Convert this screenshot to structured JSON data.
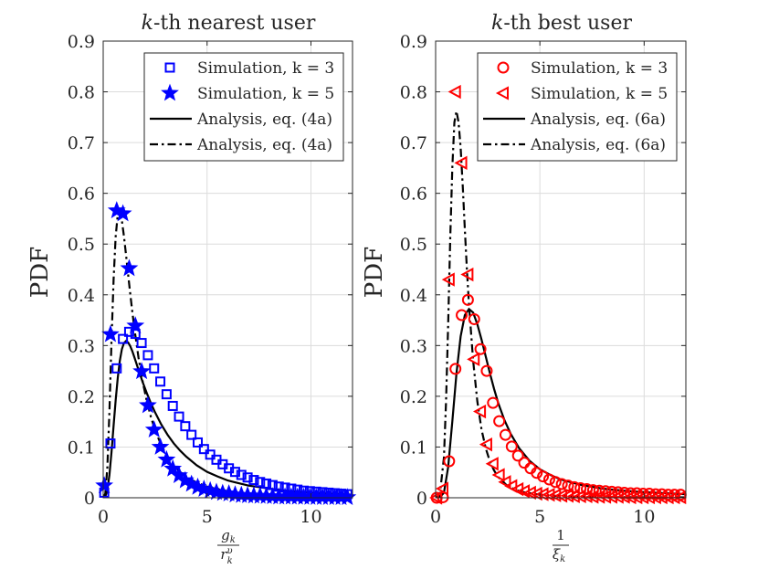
{
  "chart_data": [
    {
      "type": "line",
      "title": "k-th nearest user",
      "title_italic": "k",
      "title_rest": "-th nearest user",
      "ylabel": "PDF",
      "xlabel_num": "g",
      "xlabel_num_sub": "k",
      "xlabel_den": "r",
      "xlabel_den_sup": "υ",
      "xlabel_den_sub": "k",
      "xlim": [
        0,
        12
      ],
      "ylim": [
        0,
        0.9
      ],
      "xticks": [
        0,
        5,
        10
      ],
      "xtick_labels": [
        "0",
        "5",
        "10"
      ],
      "yticks": [
        0,
        0.1,
        0.2,
        0.3,
        0.4,
        0.5,
        0.6,
        0.7,
        0.8,
        0.9
      ],
      "ytick_labels": [
        "0",
        "0.1",
        "0.2",
        "0.3",
        "0.4",
        "0.5",
        "0.6",
        "0.7",
        "0.8",
        "0.9"
      ],
      "grid": true,
      "legend_position": "top-right",
      "color": "#0000ff",
      "series": [
        {
          "name": "Simulation, k = 3",
          "style": "marker",
          "marker": "square",
          "color": "#0000ff",
          "x": [
            0.05,
            0.35,
            0.65,
            0.95,
            1.25,
            1.55,
            1.85,
            2.15,
            2.45,
            2.75,
            3.05,
            3.35,
            3.65,
            3.95,
            4.25,
            4.55,
            4.85,
            5.15,
            5.45,
            5.75,
            6.05,
            6.35,
            6.65,
            6.95,
            7.25,
            7.55,
            7.85,
            8.15,
            8.45,
            8.75,
            9.05,
            9.35,
            9.65,
            9.95,
            10.25,
            10.55,
            10.85,
            11.15,
            11.45,
            11.75
          ],
          "y": [
            0.01,
            0.107,
            0.255,
            0.313,
            0.327,
            0.323,
            0.305,
            0.281,
            0.255,
            0.229,
            0.204,
            0.181,
            0.16,
            0.141,
            0.124,
            0.109,
            0.096,
            0.085,
            0.075,
            0.066,
            0.058,
            0.051,
            0.045,
            0.04,
            0.035,
            0.031,
            0.028,
            0.025,
            0.022,
            0.02,
            0.018,
            0.016,
            0.014,
            0.013,
            0.012,
            0.011,
            0.01,
            0.009,
            0.008,
            0.007
          ]
        },
        {
          "name": "Simulation, k = 5",
          "style": "marker",
          "marker": "star",
          "color": "#0000ff",
          "x": [
            0.05,
            0.35,
            0.65,
            0.95,
            1.25,
            1.55,
            1.85,
            2.15,
            2.45,
            2.75,
            3.05,
            3.35,
            3.65,
            3.95,
            4.25,
            4.55,
            4.85,
            5.15,
            5.45,
            5.75,
            6.05,
            6.35,
            6.65,
            6.95,
            7.25,
            7.55,
            7.85,
            8.15,
            8.45,
            8.75,
            9.05,
            9.35,
            9.65,
            9.95,
            10.25,
            10.55,
            10.85,
            11.15,
            11.45,
            11.75
          ],
          "y": [
            0.024,
            0.322,
            0.566,
            0.56,
            0.452,
            0.339,
            0.249,
            0.182,
            0.134,
            0.1,
            0.075,
            0.057,
            0.044,
            0.034,
            0.027,
            0.021,
            0.017,
            0.014,
            0.011,
            0.009,
            0.008,
            0.006,
            0.005,
            0.0045,
            0.004,
            0.0035,
            0.003,
            0.0025,
            0.002,
            0.002,
            0.0018,
            0.0016,
            0.0014,
            0.0012,
            0.001,
            0.001,
            0.001,
            0.0009,
            0.0008,
            0.0007
          ]
        },
        {
          "name": "Analysis, eq. (4a)",
          "style": "solid",
          "color": "#000000",
          "x": [
            0,
            0.1,
            0.2,
            0.3,
            0.4,
            0.5,
            0.6,
            0.7,
            0.8,
            0.9,
            1.0,
            1.1,
            1.2,
            1.3,
            1.4,
            1.5,
            1.7,
            1.9,
            2.1,
            2.3,
            2.5,
            2.8,
            3.1,
            3.4,
            3.7,
            4.0,
            4.5,
            5.0,
            5.5,
            6.0,
            6.5,
            7.0,
            7.5,
            8.0,
            9.0,
            10.0,
            11.0,
            12.0
          ],
          "y": [
            0,
            0.002,
            0.015,
            0.045,
            0.09,
            0.142,
            0.192,
            0.236,
            0.27,
            0.293,
            0.305,
            0.309,
            0.306,
            0.299,
            0.289,
            0.277,
            0.252,
            0.228,
            0.206,
            0.186,
            0.168,
            0.144,
            0.124,
            0.107,
            0.093,
            0.081,
            0.064,
            0.051,
            0.042,
            0.034,
            0.029,
            0.024,
            0.021,
            0.018,
            0.013,
            0.01,
            0.008,
            0.006
          ]
        },
        {
          "name": "Analysis, eq. (4a)",
          "style": "dashdot",
          "color": "#000000",
          "x": [
            0,
            0.1,
            0.2,
            0.3,
            0.4,
            0.5,
            0.6,
            0.7,
            0.8,
            0.9,
            1.0,
            1.1,
            1.2,
            1.3,
            1.4,
            1.5,
            1.7,
            1.9,
            2.1,
            2.3,
            2.5,
            2.8,
            3.1,
            3.4,
            3.7,
            4.0,
            4.5,
            5.0,
            5.5,
            6.0,
            7.0,
            8.0,
            9.0,
            10.0,
            11.0,
            12.0
          ],
          "y": [
            0,
            0.008,
            0.06,
            0.17,
            0.31,
            0.43,
            0.515,
            0.558,
            0.563,
            0.546,
            0.515,
            0.478,
            0.44,
            0.403,
            0.367,
            0.334,
            0.276,
            0.229,
            0.19,
            0.159,
            0.133,
            0.103,
            0.081,
            0.064,
            0.051,
            0.041,
            0.03,
            0.022,
            0.017,
            0.013,
            0.008,
            0.005,
            0.004,
            0.003,
            0.002,
            0.0015
          ]
        }
      ],
      "legend": [
        {
          "label": "Simulation, k = 3",
          "marker": "square"
        },
        {
          "label": "Simulation, k = 5",
          "marker": "star"
        },
        {
          "label": "Analysis, eq. (4a)",
          "line": "solid"
        },
        {
          "label": "Analysis, eq. (4a)",
          "line": "dashdot"
        }
      ]
    },
    {
      "type": "line",
      "title": "k-th best user",
      "title_italic": "k",
      "title_rest": "-th best user",
      "ylabel": "PDF",
      "xlabel_num": "1",
      "xlabel_den": "ξ",
      "xlabel_den_sub": "k",
      "xlim": [
        0,
        12
      ],
      "ylim": [
        0,
        0.9
      ],
      "xticks": [
        0,
        5,
        10
      ],
      "xtick_labels": [
        "0",
        "5",
        "10"
      ],
      "yticks": [
        0,
        0.1,
        0.2,
        0.3,
        0.4,
        0.5,
        0.6,
        0.7,
        0.8,
        0.9
      ],
      "ytick_labels": [
        "0",
        "0.1",
        "0.2",
        "0.3",
        "0.4",
        "0.5",
        "0.6",
        "0.7",
        "0.8",
        "0.9"
      ],
      "grid": true,
      "legend_position": "top-right",
      "color": "#ff0000",
      "series": [
        {
          "name": "Simulation, k = 3",
          "style": "marker",
          "marker": "circle",
          "color": "#ff0000",
          "x": [
            0.05,
            0.35,
            0.65,
            0.95,
            1.25,
            1.55,
            1.85,
            2.15,
            2.45,
            2.75,
            3.05,
            3.35,
            3.65,
            3.95,
            4.25,
            4.55,
            4.85,
            5.15,
            5.45,
            5.75,
            6.05,
            6.35,
            6.65,
            6.95,
            7.25,
            7.55,
            7.85,
            8.15,
            8.45,
            8.75,
            9.05,
            9.35,
            9.65,
            9.95,
            10.25,
            10.55,
            10.85,
            11.15,
            11.45,
            11.75
          ],
          "y": [
            0.0,
            0.001,
            0.072,
            0.254,
            0.36,
            0.39,
            0.352,
            0.293,
            0.25,
            0.187,
            0.151,
            0.124,
            0.101,
            0.083,
            0.069,
            0.058,
            0.049,
            0.042,
            0.036,
            0.031,
            0.027,
            0.024,
            0.021,
            0.019,
            0.017,
            0.015,
            0.014,
            0.013,
            0.012,
            0.011,
            0.01,
            0.009,
            0.009,
            0.008,
            0.008,
            0.007,
            0.007,
            0.006,
            0.006,
            0.006
          ]
        },
        {
          "name": "Simulation, k = 5",
          "style": "marker",
          "marker": "triangle-left",
          "color": "#ff0000",
          "x": [
            0.05,
            0.35,
            0.65,
            0.95,
            1.25,
            1.55,
            1.85,
            2.15,
            2.45,
            2.75,
            3.05,
            3.35,
            3.65,
            3.95,
            4.25,
            4.55,
            4.85,
            5.15,
            5.45,
            5.75,
            6.05,
            6.35,
            6.65,
            6.95,
            7.25,
            7.55,
            7.85,
            8.15,
            8.45,
            8.75,
            9.05,
            9.35,
            9.65,
            9.95,
            10.25,
            10.55,
            10.85,
            11.15,
            11.45,
            11.75
          ],
          "y": [
            0.0,
            0.018,
            0.43,
            0.8,
            0.66,
            0.44,
            0.273,
            0.17,
            0.105,
            0.067,
            0.045,
            0.031,
            0.023,
            0.017,
            0.013,
            0.01,
            0.008,
            0.007,
            0.006,
            0.005,
            0.004,
            0.004,
            0.003,
            0.003,
            0.003,
            0.002,
            0.002,
            0.002,
            0.002,
            0.002,
            0.002,
            0.001,
            0.001,
            0.001,
            0.001,
            0.001,
            0.001,
            0.001,
            0.001,
            0.001
          ]
        },
        {
          "name": "Analysis, eq. (6a)",
          "style": "solid",
          "color": "#000000",
          "x": [
            0,
            0.2,
            0.4,
            0.6,
            0.8,
            1.0,
            1.2,
            1.4,
            1.6,
            1.8,
            2.0,
            2.2,
            2.4,
            2.6,
            2.8,
            3.0,
            3.3,
            3.6,
            4.0,
            4.5,
            5.0,
            5.5,
            6.0,
            7.0,
            8.0,
            9.0,
            10.0,
            11.0,
            12.0
          ],
          "y": [
            0,
            0.001,
            0.01,
            0.06,
            0.15,
            0.245,
            0.318,
            0.36,
            0.372,
            0.365,
            0.342,
            0.312,
            0.279,
            0.246,
            0.215,
            0.187,
            0.153,
            0.126,
            0.098,
            0.073,
            0.056,
            0.045,
            0.036,
            0.025,
            0.018,
            0.014,
            0.011,
            0.009,
            0.007
          ]
        },
        {
          "name": "Analysis, eq. (6a)",
          "style": "dashdot",
          "color": "#000000",
          "x": [
            0,
            0.2,
            0.4,
            0.5,
            0.6,
            0.7,
            0.8,
            0.9,
            1.0,
            1.1,
            1.2,
            1.3,
            1.4,
            1.5,
            1.6,
            1.8,
            2.0,
            2.2,
            2.4,
            2.6,
            2.8,
            3.0,
            3.4,
            3.8,
            4.2,
            5.0,
            6.0,
            7.0,
            8.0,
            10.0,
            12.0
          ],
          "y": [
            0,
            0.005,
            0.08,
            0.19,
            0.34,
            0.51,
            0.65,
            0.74,
            0.762,
            0.74,
            0.69,
            0.615,
            0.53,
            0.45,
            0.38,
            0.27,
            0.19,
            0.135,
            0.098,
            0.072,
            0.054,
            0.041,
            0.025,
            0.016,
            0.011,
            0.006,
            0.003,
            0.002,
            0.0015,
            0.001,
            0.0008
          ]
        }
      ],
      "legend": [
        {
          "label": "Simulation, k = 3",
          "marker": "circle"
        },
        {
          "label": "Simulation, k = 5",
          "marker": "triangle-left"
        },
        {
          "label": "Analysis, eq. (6a)",
          "line": "solid"
        },
        {
          "label": "Analysis, eq. (6a)",
          "line": "dashdot"
        }
      ]
    }
  ]
}
